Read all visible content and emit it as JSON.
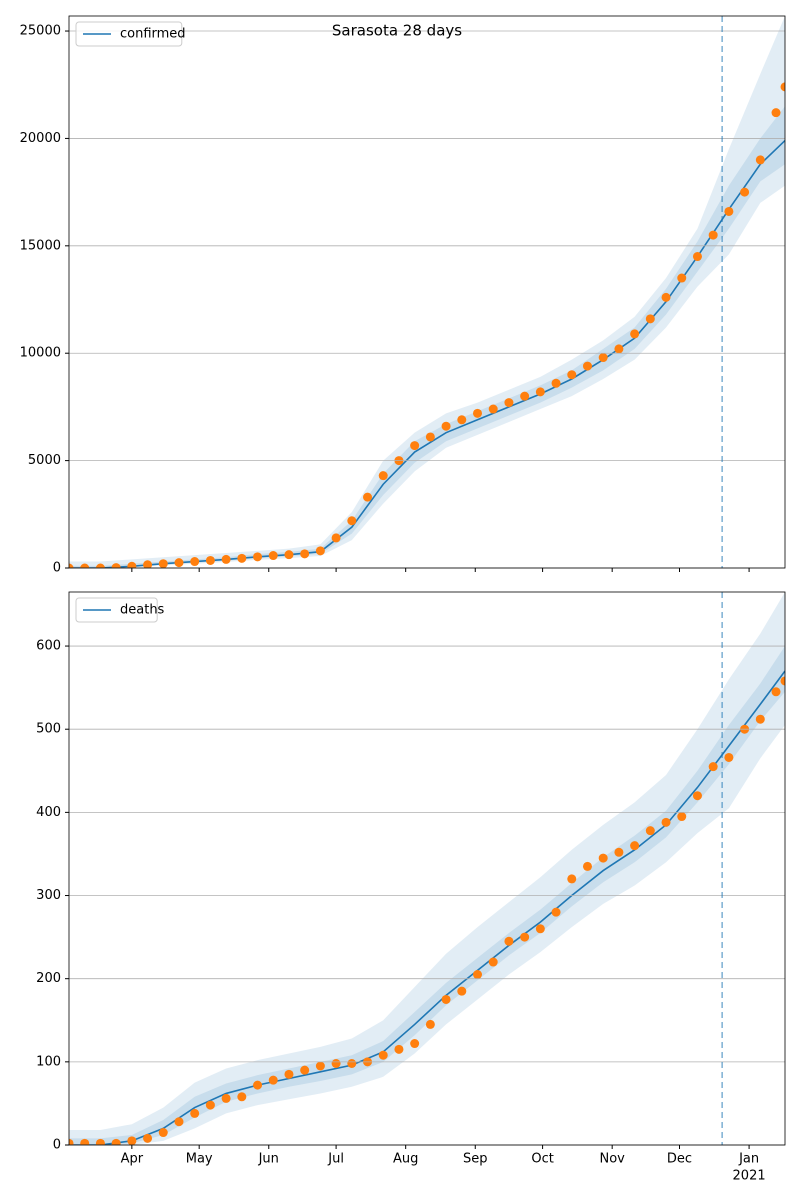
{
  "chart_data": [
    {
      "type": "line",
      "title": "Sarasota 28 days",
      "legend": "upper left",
      "grid": true,
      "xlim": [
        3,
        322
      ],
      "ylim": [
        0,
        25700
      ],
      "yticks": [
        0,
        5000,
        10000,
        15000,
        20000,
        25000
      ],
      "x": [
        3,
        17,
        31,
        45,
        59,
        73,
        87,
        101,
        115,
        129,
        143,
        157,
        171,
        185,
        199,
        213,
        227,
        241,
        255,
        269,
        283,
        297,
        311,
        322
      ],
      "series": [
        {
          "name": "confirmed",
          "color": "#1f77b4",
          "values": [
            0,
            0,
            80,
            200,
            300,
            400,
            520,
            620,
            760,
            1900,
            3900,
            5400,
            6300,
            6900,
            7500,
            8100,
            8800,
            9700,
            10700,
            12400,
            14500,
            16700,
            18800,
            19900
          ]
        }
      ],
      "bands": [
        {
          "lower": [
            0,
            0,
            40,
            120,
            200,
            280,
            380,
            460,
            560,
            1300,
            3000,
            4500,
            5600,
            6200,
            6800,
            7400,
            8000,
            8800,
            9700,
            11200,
            13100,
            14600,
            17000,
            17800
          ],
          "upper": [
            300,
            300,
            400,
            500,
            600,
            700,
            800,
            900,
            1100,
            2600,
            5000,
            6300,
            7200,
            7700,
            8300,
            8900,
            9700,
            10600,
            11700,
            13500,
            15800,
            19500,
            23000,
            25700
          ]
        },
        {
          "lower": [
            0,
            0,
            60,
            160,
            250,
            340,
            450,
            540,
            660,
            1600,
            3400,
            4900,
            5900,
            6500,
            7100,
            7700,
            8400,
            9200,
            10200,
            11800,
            13800,
            15800,
            18000,
            18800
          ],
          "upper": [
            100,
            100,
            200,
            300,
            400,
            500,
            650,
            750,
            900,
            2200,
            4400,
            5900,
            6700,
            7300,
            7900,
            8500,
            9200,
            10200,
            11200,
            13000,
            15200,
            17800,
            20000,
            21500
          ]
        }
      ],
      "band_color": "#1f77b4",
      "observed": {
        "color": "#ff7f0e",
        "x": [
          3,
          10,
          17,
          24,
          31,
          38,
          45,
          52,
          59,
          66,
          73,
          80,
          87,
          94,
          101,
          108,
          115,
          122,
          129,
          136,
          143,
          150,
          157,
          164,
          171,
          178,
          185,
          192,
          199,
          206,
          213,
          220,
          227,
          234,
          241,
          248,
          255,
          262,
          269,
          276,
          283,
          290,
          297,
          304,
          311,
          318,
          322
        ],
        "values": [
          0,
          0,
          0,
          20,
          80,
          150,
          200,
          250,
          300,
          350,
          400,
          450,
          520,
          580,
          620,
          660,
          800,
          1400,
          2200,
          3300,
          4300,
          5000,
          5700,
          6100,
          6600,
          6900,
          7200,
          7400,
          7700,
          8000,
          8200,
          8600,
          9000,
          9400,
          9800,
          10200,
          10900,
          11600,
          12600,
          13500,
          14500,
          15500,
          16600,
          17500,
          19000,
          21200,
          22400
        ]
      },
      "forecast_start": 294
    },
    {
      "type": "line",
      "legend": "upper left",
      "grid": true,
      "xlim": [
        3,
        322
      ],
      "ylim": [
        0,
        665
      ],
      "yticks": [
        0,
        100,
        200,
        300,
        400,
        500,
        600
      ],
      "xticks": [
        {
          "value": 31,
          "label": "Apr"
        },
        {
          "value": 61,
          "label": "May"
        },
        {
          "value": 92,
          "label": "Jun"
        },
        {
          "value": 122,
          "label": "Jul"
        },
        {
          "value": 153,
          "label": "Aug"
        },
        {
          "value": 184,
          "label": "Sep"
        },
        {
          "value": 214,
          "label": "Oct"
        },
        {
          "value": 245,
          "label": "Nov"
        },
        {
          "value": 275,
          "label": "Dec"
        },
        {
          "value": 306,
          "label": "Jan"
        }
      ],
      "year_label": "2021",
      "x": [
        3,
        17,
        31,
        45,
        59,
        73,
        87,
        101,
        115,
        129,
        143,
        157,
        171,
        185,
        199,
        213,
        227,
        241,
        255,
        269,
        283,
        297,
        311,
        322
      ],
      "series": [
        {
          "name": "deaths",
          "color": "#1f77b4",
          "values": [
            0,
            0,
            5,
            20,
            45,
            62,
            72,
            80,
            88,
            96,
            112,
            145,
            180,
            210,
            240,
            268,
            300,
            330,
            355,
            385,
            430,
            480,
            530,
            570
          ]
        }
      ],
      "bands": [
        {
          "lower": [
            0,
            0,
            0,
            5,
            20,
            38,
            48,
            55,
            62,
            70,
            82,
            110,
            145,
            175,
            205,
            232,
            262,
            290,
            312,
            340,
            375,
            405,
            465,
            505
          ],
          "upper": [
            18,
            18,
            25,
            45,
            75,
            92,
            102,
            110,
            118,
            128,
            150,
            190,
            230,
            262,
            292,
            322,
            355,
            385,
            412,
            445,
            500,
            560,
            615,
            665
          ]
        },
        {
          "lower": [
            0,
            0,
            2,
            12,
            33,
            52,
            62,
            70,
            77,
            85,
            100,
            132,
            168,
            198,
            228,
            255,
            287,
            316,
            340,
            370,
            412,
            458,
            510,
            545
          ],
          "upper": [
            8,
            8,
            12,
            30,
            58,
            74,
            84,
            92,
            100,
            108,
            125,
            160,
            195,
            225,
            255,
            283,
            315,
            346,
            372,
            402,
            450,
            505,
            555,
            600
          ]
        }
      ],
      "band_color": "#1f77b4",
      "observed": {
        "color": "#ff7f0e",
        "x": [
          3,
          10,
          17,
          24,
          31,
          38,
          45,
          52,
          59,
          66,
          73,
          80,
          87,
          94,
          101,
          108,
          115,
          122,
          129,
          136,
          143,
          150,
          157,
          164,
          171,
          178,
          185,
          192,
          199,
          206,
          213,
          220,
          227,
          234,
          241,
          248,
          255,
          262,
          269,
          276,
          283,
          290,
          297,
          304,
          311,
          318,
          322
        ],
        "values": [
          2,
          2,
          2,
          2,
          5,
          8,
          15,
          28,
          38,
          48,
          56,
          58,
          72,
          78,
          85,
          90,
          95,
          98,
          98,
          100,
          108,
          115,
          122,
          145,
          175,
          185,
          205,
          220,
          245,
          250,
          260,
          280,
          320,
          335,
          345,
          352,
          360,
          378,
          388,
          395,
          420,
          455,
          466,
          500,
          512,
          545,
          558
        ]
      },
      "forecast_start": 294
    }
  ]
}
